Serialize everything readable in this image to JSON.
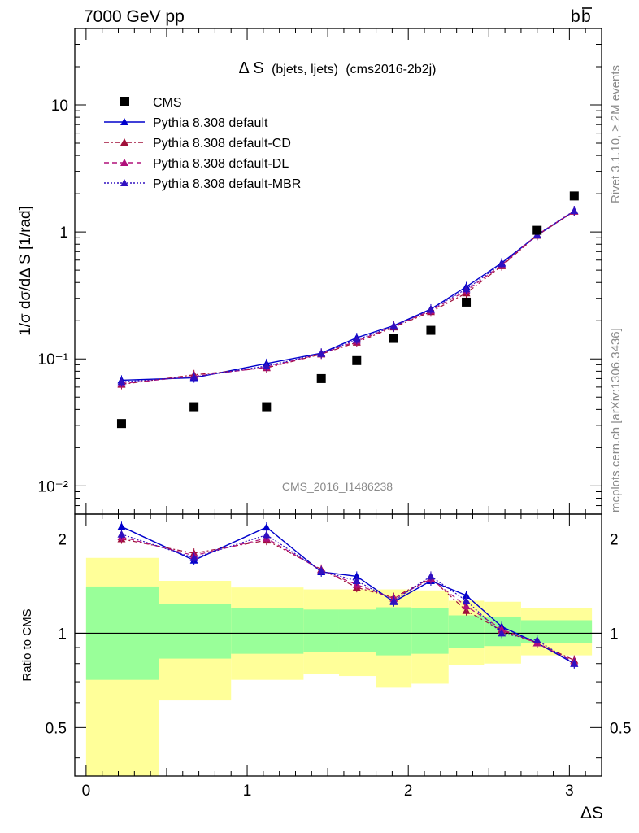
{
  "header": {
    "left": "7000 GeV pp",
    "right_main": "b",
    "right_bar": "b"
  },
  "side_labels": {
    "rivet": "Rivet 3.1.10, ≥ 2M events",
    "mcplots": "mcplots.cern.ch [arXiv:1306.3436]"
  },
  "chart_data": [
    {
      "type": "scatter",
      "title_main": "Δ S",
      "title_sub": "(bjets, ljets)",
      "title_tag": "(cms2016-2b2j)",
      "watermark": "CMS_2016_I1486238",
      "ylabel": "1/σ dσ/dΔ S [1/rad]",
      "yscale": "log",
      "ylim": [
        0.006,
        40
      ],
      "xlim": [
        -0.07,
        3.2
      ],
      "y_tick_labels": [
        {
          "v": 10,
          "text": "10"
        },
        {
          "v": 1,
          "text": "1"
        },
        {
          "v": 0.1,
          "text": "10⁻¹"
        },
        {
          "v": 0.01,
          "text": "10⁻²"
        }
      ],
      "legend_position": "top-left",
      "x": [
        0.22,
        0.67,
        1.12,
        1.46,
        1.68,
        1.91,
        2.14,
        2.36,
        2.58,
        2.8,
        3.03
      ],
      "series": [
        {
          "name": "CMS",
          "style": "data",
          "color": "#000000",
          "values": [
            0.031,
            0.042,
            0.042,
            0.07,
            0.097,
            0.145,
            0.168,
            0.28,
            null,
            1.03,
            1.92
          ]
        },
        {
          "name": "Pythia 8.308 default",
          "style": "solid",
          "color": "#0000cc",
          "values": [
            0.068,
            0.071,
            0.092,
            0.111,
            0.147,
            0.183,
            0.247,
            0.37,
            0.57,
            0.94,
            1.46
          ]
        },
        {
          "name": "Pythia 8.308 default-CD",
          "style": "dashdot",
          "color": "#a0103a",
          "values": [
            0.063,
            0.075,
            0.085,
            0.109,
            0.135,
            0.178,
            0.235,
            0.33,
            0.54,
            0.94,
            1.45
          ]
        },
        {
          "name": "Pythia 8.308 default-DL",
          "style": "dashed",
          "color": "#b0107a",
          "values": [
            0.064,
            0.073,
            0.086,
            0.11,
            0.138,
            0.181,
            0.24,
            0.345,
            0.55,
            0.95,
            1.46
          ]
        },
        {
          "name": "Pythia 8.308 default-MBR",
          "style": "dotted",
          "color": "#3010c0",
          "values": [
            0.066,
            0.072,
            0.088,
            0.11,
            0.142,
            0.18,
            0.245,
            0.355,
            0.56,
            0.95,
            1.47
          ]
        }
      ]
    },
    {
      "type": "line",
      "ylabel": "Ratio to CMS",
      "xlabel": "ΔS",
      "yscale": "log",
      "ylim": [
        0.35,
        2.4
      ],
      "xlim": [
        -0.07,
        3.2
      ],
      "x_tick_labels": [
        {
          "v": 0,
          "text": "0"
        },
        {
          "v": 1,
          "text": "1"
        },
        {
          "v": 2,
          "text": "2"
        },
        {
          "v": 3,
          "text": "3"
        }
      ],
      "y_tick_labels": [
        {
          "v": 2,
          "text": "2"
        },
        {
          "v": 1,
          "text": "1"
        },
        {
          "v": 0.5,
          "text": "0.5"
        }
      ],
      "bins": [
        {
          "lo": 0.0,
          "hi": 0.45,
          "green": [
            0.71,
            1.41
          ],
          "yellow": [
            0.25,
            1.74
          ]
        },
        {
          "lo": 0.45,
          "hi": 0.9,
          "green": [
            0.83,
            1.24
          ],
          "yellow": [
            0.61,
            1.47
          ]
        },
        {
          "lo": 0.9,
          "hi": 1.35,
          "green": [
            0.86,
            1.2
          ],
          "yellow": [
            0.71,
            1.4
          ]
        },
        {
          "lo": 1.35,
          "hi": 1.57,
          "green": [
            0.87,
            1.19
          ],
          "yellow": [
            0.74,
            1.38
          ]
        },
        {
          "lo": 1.57,
          "hi": 1.8,
          "green": [
            0.87,
            1.19
          ],
          "yellow": [
            0.73,
            1.38
          ]
        },
        {
          "lo": 1.8,
          "hi": 2.02,
          "green": [
            0.85,
            1.21
          ],
          "yellow": [
            0.67,
            1.38
          ]
        },
        {
          "lo": 2.02,
          "hi": 2.25,
          "green": [
            0.86,
            1.2
          ],
          "yellow": [
            0.69,
            1.37
          ]
        },
        {
          "lo": 2.25,
          "hi": 2.47,
          "green": [
            0.9,
            1.14
          ],
          "yellow": [
            0.79,
            1.27
          ]
        },
        {
          "lo": 2.47,
          "hi": 2.7,
          "green": [
            0.91,
            1.13
          ],
          "yellow": [
            0.8,
            1.26
          ]
        },
        {
          "lo": 2.7,
          "hi": 3.14,
          "green": [
            0.93,
            1.1
          ],
          "yellow": [
            0.85,
            1.2
          ]
        }
      ],
      "x": [
        0.22,
        0.67,
        1.12,
        1.46,
        1.68,
        1.91,
        2.14,
        2.36,
        2.58,
        2.8,
        3.03
      ],
      "series": [
        {
          "name": "Pythia 8.308 default",
          "style": "solid",
          "color": "#0000cc",
          "values": [
            2.19,
            1.71,
            2.18,
            1.57,
            1.52,
            1.26,
            1.47,
            1.32,
            1.05,
            0.93,
            0.8
          ]
        },
        {
          "name": "Pythia 8.308 default-CD",
          "style": "dashdot",
          "color": "#a0103a",
          "values": [
            2.0,
            1.8,
            1.98,
            1.6,
            1.4,
            1.3,
            1.5,
            1.18,
            1.02,
            0.93,
            0.82
          ]
        },
        {
          "name": "Pythia 8.308 default-DL",
          "style": "dashed",
          "color": "#b0107a",
          "values": [
            2.03,
            1.77,
            2.01,
            1.59,
            1.43,
            1.29,
            1.49,
            1.22,
            1.03,
            0.93,
            0.81
          ]
        },
        {
          "name": "Pythia 8.308 default-MBR",
          "style": "dotted",
          "color": "#3010c0",
          "values": [
            2.07,
            1.74,
            2.06,
            1.58,
            1.47,
            1.27,
            1.52,
            1.27,
            1.0,
            0.95,
            0.8
          ]
        }
      ]
    }
  ]
}
